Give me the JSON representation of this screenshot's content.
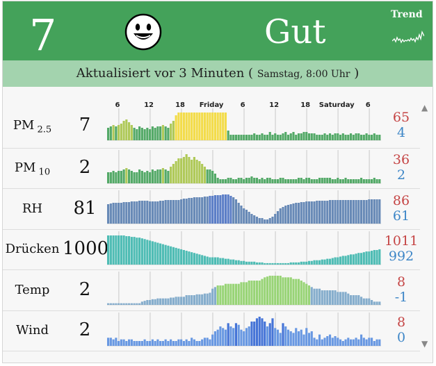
{
  "header": {
    "aqi_value": "7",
    "status": "Gut",
    "trend_label": "Trend",
    "face_icon": "smiley-face-icon",
    "trend_icon": "sparkline-icon",
    "color": "#44a25a"
  },
  "updated": {
    "text": "Aktualisiert vor 3 Minuten (",
    "time": "Samstag, 8:00 Uhr",
    "close": ")"
  },
  "axis": {
    "ticks": [
      {
        "label": "6",
        "slot": 4
      },
      {
        "label": "12",
        "slot": 16
      },
      {
        "label": "18",
        "slot": 28
      },
      {
        "label": "Friday",
        "slot": 40
      },
      {
        "label": "6",
        "slot": 52
      },
      {
        "label": "12",
        "slot": 64
      },
      {
        "label": "18",
        "slot": 76
      },
      {
        "label": "Saturday",
        "slot": 88
      },
      {
        "label": "6",
        "slot": 100
      }
    ]
  },
  "rows": [
    {
      "id": "pm25",
      "label": "PM",
      "sub": "2.5",
      "value": "7",
      "max": "65",
      "min": "4",
      "color": "#44a25a",
      "data": [
        18,
        20,
        22,
        20,
        22,
        24,
        28,
        30,
        26,
        22,
        18,
        16,
        20,
        18,
        16,
        18,
        16,
        20,
        18,
        20,
        20,
        22,
        20,
        18,
        24,
        28,
        36,
        40,
        40,
        40,
        40,
        40,
        40,
        40,
        40,
        40,
        40,
        40,
        40,
        40,
        40,
        40,
        40,
        40,
        40,
        40,
        14,
        8,
        8,
        8,
        8,
        8,
        8,
        8,
        8,
        8,
        10,
        8,
        8,
        10,
        8,
        8,
        12,
        8,
        10,
        8,
        8,
        10,
        12,
        8,
        10,
        12,
        8,
        10,
        10,
        12,
        12,
        10,
        10,
        10,
        8,
        8,
        8,
        10,
        8,
        10,
        8,
        10,
        10,
        8,
        10,
        8,
        8,
        10,
        8,
        10,
        10,
        8,
        8,
        10,
        8,
        8,
        10,
        8,
        8
      ]
    },
    {
      "id": "pm10",
      "label": "PM",
      "sub": "10",
      "value": "2",
      "max": "36",
      "min": "2",
      "color": "#44a25a",
      "data": [
        16,
        16,
        18,
        16,
        18,
        18,
        20,
        22,
        20,
        18,
        16,
        16,
        20,
        18,
        16,
        18,
        16,
        20,
        18,
        20,
        20,
        22,
        20,
        18,
        24,
        28,
        32,
        36,
        36,
        38,
        42,
        38,
        34,
        38,
        34,
        32,
        28,
        24,
        20,
        20,
        18,
        14,
        8,
        6,
        6,
        6,
        8,
        8,
        6,
        6,
        8,
        8,
        6,
        8,
        8,
        10,
        8,
        8,
        6,
        8,
        6,
        8,
        8,
        6,
        6,
        6,
        8,
        8,
        6,
        6,
        6,
        6,
        6,
        8,
        8,
        6,
        8,
        8,
        6,
        6,
        6,
        8,
        8,
        8,
        8,
        8,
        6,
        6,
        8,
        6,
        6,
        8,
        6,
        6,
        6,
        6,
        6,
        8,
        6,
        6,
        6,
        6,
        8,
        6,
        6
      ]
    },
    {
      "id": "rh",
      "label": "RH",
      "sub": "",
      "value": "81",
      "max": "86",
      "min": "61",
      "color": "#5a7fb0",
      "data": [
        28,
        29,
        30,
        30,
        30,
        30,
        31,
        31,
        31,
        32,
        32,
        32,
        33,
        33,
        33,
        33,
        32,
        32,
        32,
        32,
        33,
        33,
        34,
        34,
        34,
        34,
        34,
        34,
        35,
        36,
        36,
        37,
        37,
        38,
        38,
        38,
        38,
        39,
        39,
        40,
        40,
        41,
        41,
        41,
        42,
        42,
        42,
        40,
        38,
        35,
        30,
        26,
        22,
        20,
        17,
        14,
        12,
        10,
        8,
        8,
        6,
        6,
        8,
        10,
        14,
        18,
        22,
        24,
        26,
        27,
        28,
        29,
        30,
        30,
        31,
        31,
        32,
        32,
        32,
        32,
        33,
        33,
        33,
        33,
        33,
        34,
        34,
        34,
        34,
        34,
        34,
        34,
        34,
        34,
        34,
        34,
        34,
        34,
        34,
        34,
        35,
        35,
        35,
        35,
        35
      ]
    },
    {
      "id": "pressure",
      "label": "Drücken",
      "sub": "",
      "value": "1000",
      "max": "1011",
      "min": "992",
      "color": "#3fb6ad",
      "data": [
        40,
        40,
        40,
        40,
        40,
        40,
        40,
        39,
        39,
        38,
        38,
        37,
        37,
        36,
        35,
        34,
        33,
        32,
        31,
        30,
        29,
        28,
        27,
        26,
        25,
        24,
        23,
        22,
        21,
        20,
        19,
        18,
        17,
        16,
        15,
        14,
        13,
        12,
        11,
        10,
        10,
        10,
        10,
        9,
        9,
        8,
        8,
        7,
        7,
        6,
        6,
        5,
        5,
        4,
        4,
        4,
        4,
        3,
        3,
        3,
        2,
        2,
        2,
        2,
        2,
        2,
        2,
        2,
        2,
        2,
        3,
        3,
        3,
        3,
        4,
        4,
        4,
        5,
        5,
        6,
        6,
        6,
        7,
        7,
        8,
        8,
        9,
        10,
        10,
        11,
        12,
        12,
        13,
        14,
        14,
        15,
        16,
        16,
        17,
        18,
        18,
        19,
        20,
        20,
        21,
        21
      ]
    },
    {
      "id": "temp",
      "label": "Temp",
      "sub": "",
      "value": "2",
      "max": "8",
      "min": "-1",
      "color": "#7aa6c8",
      "data": [
        2,
        2,
        2,
        2,
        2,
        2,
        2,
        2,
        2,
        2,
        2,
        2,
        2,
        4,
        5,
        6,
        6,
        7,
        7,
        8,
        8,
        8,
        8,
        8,
        9,
        9,
        10,
        10,
        10,
        10,
        12,
        12,
        12,
        12,
        13,
        13,
        13,
        14,
        14,
        15,
        20,
        22,
        24,
        24,
        24,
        26,
        26,
        26,
        26,
        26,
        26,
        28,
        28,
        28,
        30,
        30,
        30,
        30,
        30,
        32,
        34,
        35,
        36,
        36,
        36,
        36,
        36,
        34,
        34,
        34,
        34,
        32,
        32,
        32,
        30,
        28,
        26,
        24,
        22,
        20,
        20,
        20,
        18,
        18,
        18,
        18,
        18,
        18,
        16,
        16,
        16,
        16,
        14,
        12,
        12,
        12,
        12,
        10,
        8,
        8,
        8,
        6,
        4,
        4,
        4
      ]
    },
    {
      "id": "wind",
      "label": "Wind",
      "sub": "",
      "value": "2",
      "max": "8",
      "min": "0",
      "color": "#5b8fe0",
      "data": [
        10,
        10,
        8,
        10,
        6,
        8,
        8,
        6,
        8,
        8,
        6,
        6,
        6,
        6,
        8,
        6,
        6,
        8,
        6,
        8,
        6,
        6,
        8,
        6,
        8,
        6,
        6,
        8,
        8,
        6,
        8,
        6,
        10,
        8,
        6,
        6,
        8,
        10,
        10,
        8,
        14,
        18,
        20,
        24,
        22,
        20,
        28,
        24,
        22,
        28,
        26,
        20,
        18,
        22,
        24,
        30,
        30,
        34,
        36,
        34,
        30,
        24,
        28,
        34,
        22,
        20,
        16,
        28,
        24,
        20,
        18,
        16,
        22,
        18,
        20,
        14,
        22,
        16,
        18,
        10,
        8,
        14,
        8,
        10,
        12,
        14,
        10,
        12,
        10,
        8,
        6,
        8,
        10,
        8,
        8,
        10,
        8,
        14,
        10,
        8,
        10,
        10,
        6,
        8,
        8
      ]
    }
  ]
}
